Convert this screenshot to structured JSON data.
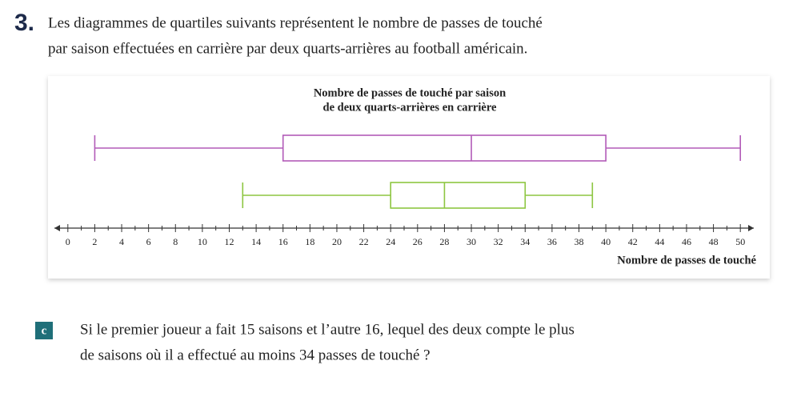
{
  "exercise": {
    "number": "3.",
    "lines": [
      "Les diagrammes de quartiles suivants représentent le nombre de passes de touché",
      "par saison effectuées en carrière par deux quarts-arrières au football américain."
    ]
  },
  "chart_data": {
    "type": "boxplot",
    "title": [
      "Nombre de passes de touché par saison",
      "de deux quarts-arrières en carrière"
    ],
    "x_label": "Nombre de passes de touché",
    "series": [
      {
        "color": "#b25bb8",
        "min": 2,
        "q1": 16,
        "median": 30,
        "q3": 40,
        "max": 50
      },
      {
        "color": "#8dc641",
        "min": 13,
        "q1": 24,
        "median": 28,
        "q3": 34,
        "max": 39
      }
    ],
    "xlim": [
      -1,
      51
    ],
    "xticks": [
      0,
      2,
      4,
      6,
      8,
      10,
      12,
      14,
      16,
      18,
      20,
      22,
      24,
      26,
      28,
      30,
      32,
      34,
      36,
      38,
      40,
      42,
      44,
      46,
      48,
      50
    ],
    "minor_xticks": [
      1,
      3,
      5,
      7,
      9,
      11,
      13,
      15,
      17,
      19,
      21,
      23,
      25,
      27,
      29,
      31,
      33,
      35,
      37,
      39,
      41,
      43,
      45,
      47,
      49
    ]
  },
  "question": {
    "letter": "c",
    "lines": [
      "Si le premier joueur a fait 15 saisons et l’autre 16, lequel des deux compte le plus",
      "de saisons où il a effectué au moins 34 passes de touché ?"
    ]
  }
}
